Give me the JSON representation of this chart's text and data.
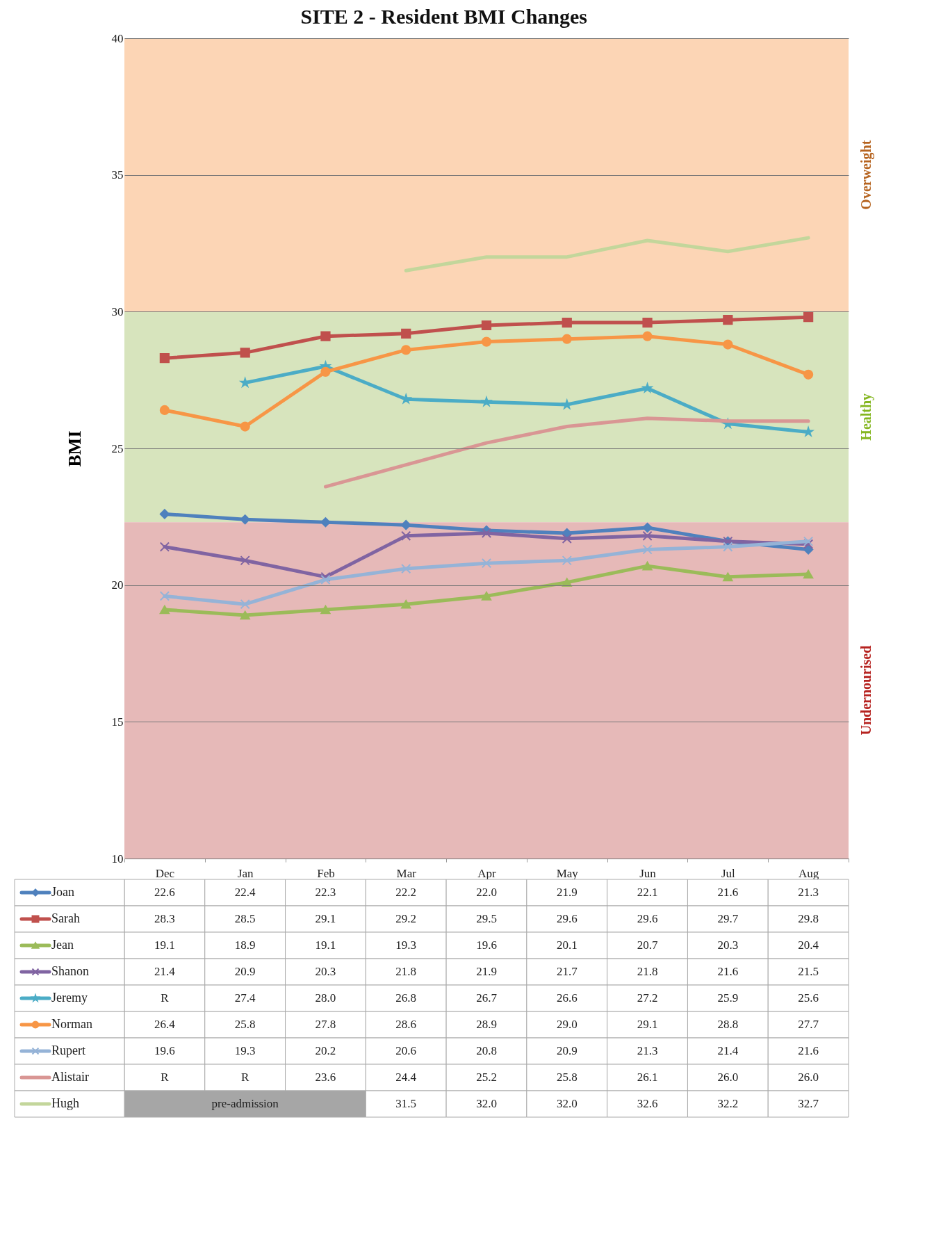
{
  "chart_data": {
    "type": "line",
    "title": "SITE 2 - Resident BMI Changes",
    "ylabel": "BMI",
    "categories": [
      "Dec",
      "Jan",
      "Feb",
      "Mar",
      "Apr",
      "May",
      "Jun",
      "Jul",
      "Aug"
    ],
    "ylim": [
      10,
      40
    ],
    "yticks": [
      10,
      15,
      20,
      25,
      30,
      35,
      40
    ],
    "grid": "y",
    "legend": "bottom",
    "line_style": "solid",
    "series": [
      {
        "name": "Joan",
        "color": "#4f81bd",
        "marker": "diamond",
        "values": [
          22.6,
          22.4,
          22.3,
          22.2,
          22.0,
          21.9,
          22.1,
          21.6,
          21.3
        ],
        "value_labels": [
          "22.6",
          "22.4",
          "22.3",
          "22.2",
          "22.0",
          "21.9",
          "22.1",
          "21.6",
          "21.3"
        ]
      },
      {
        "name": "Sarah",
        "color": "#c0504d",
        "marker": "square",
        "values": [
          28.3,
          28.5,
          29.1,
          29.2,
          29.5,
          29.6,
          29.6,
          29.7,
          29.8
        ],
        "value_labels": [
          "28.3",
          "28.5",
          "29.1",
          "29.2",
          "29.5",
          "29.6",
          "29.6",
          "29.7",
          "29.8"
        ]
      },
      {
        "name": "Jean",
        "color": "#9bbb59",
        "marker": "triangle",
        "values": [
          19.1,
          18.9,
          19.1,
          19.3,
          19.6,
          20.1,
          20.7,
          20.3,
          20.4
        ],
        "value_labels": [
          "19.1",
          "18.9",
          "19.1",
          "19.3",
          "19.6",
          "20.1",
          "20.7",
          "20.3",
          "20.4"
        ]
      },
      {
        "name": "Shanon",
        "color": "#8064a2",
        "marker": "cross",
        "values": [
          21.4,
          20.9,
          20.3,
          21.8,
          21.9,
          21.7,
          21.8,
          21.6,
          21.5
        ],
        "value_labels": [
          "21.4",
          "20.9",
          "20.3",
          "21.8",
          "21.9",
          "21.7",
          "21.8",
          "21.6",
          "21.5"
        ]
      },
      {
        "name": "Jeremy",
        "color": "#4bacc6",
        "marker": "star",
        "values": [
          null,
          27.4,
          28.0,
          26.8,
          26.7,
          26.6,
          27.2,
          25.9,
          25.6
        ],
        "value_labels": [
          "R",
          "27.4",
          "28.0",
          "26.8",
          "26.7",
          "26.6",
          "27.2",
          "25.9",
          "25.6"
        ]
      },
      {
        "name": "Norman",
        "color": "#f79646",
        "marker": "circle",
        "values": [
          26.4,
          25.8,
          27.8,
          28.6,
          28.9,
          29.0,
          29.1,
          28.8,
          27.7
        ],
        "value_labels": [
          "26.4",
          "25.8",
          "27.8",
          "28.6",
          "28.9",
          "29.0",
          "29.1",
          "28.8",
          "27.7"
        ]
      },
      {
        "name": "Rupert",
        "color": "#95b3d7",
        "marker": "cross",
        "values": [
          19.6,
          19.3,
          20.2,
          20.6,
          20.8,
          20.9,
          21.3,
          21.4,
          21.6
        ],
        "value_labels": [
          "19.6",
          "19.3",
          "20.2",
          "20.6",
          "20.8",
          "20.9",
          "21.3",
          "21.4",
          "21.6"
        ]
      },
      {
        "name": "Alistair",
        "color": "#d99694",
        "marker": "none",
        "values": [
          null,
          null,
          23.6,
          24.4,
          25.2,
          25.8,
          26.1,
          26.0,
          26.0
        ],
        "value_labels": [
          "R",
          "R",
          "23.6",
          "24.4",
          "25.2",
          "25.8",
          "26.1",
          "26.0",
          "26.0"
        ]
      },
      {
        "name": "Hugh",
        "color": "#c3d69b",
        "marker": "none",
        "values": [
          null,
          null,
          null,
          31.5,
          32.0,
          32.0,
          32.6,
          32.2,
          32.7
        ],
        "value_labels": [
          "pre-admission",
          null,
          null,
          "31.5",
          "32.0",
          "32.0",
          "32.6",
          "32.2",
          "32.7"
        ]
      }
    ],
    "bands": [
      {
        "axis": "y",
        "from": 30,
        "to": 40,
        "label": "Overweight",
        "color": "#fcd5b5"
      },
      {
        "axis": "y",
        "from": 22.3,
        "to": 30,
        "label": "Healthy",
        "color": "#d7e4bd"
      },
      {
        "axis": "y",
        "from": 10,
        "to": 22.3,
        "label": "Undernourised",
        "color": "#e6b9b8"
      }
    ]
  }
}
